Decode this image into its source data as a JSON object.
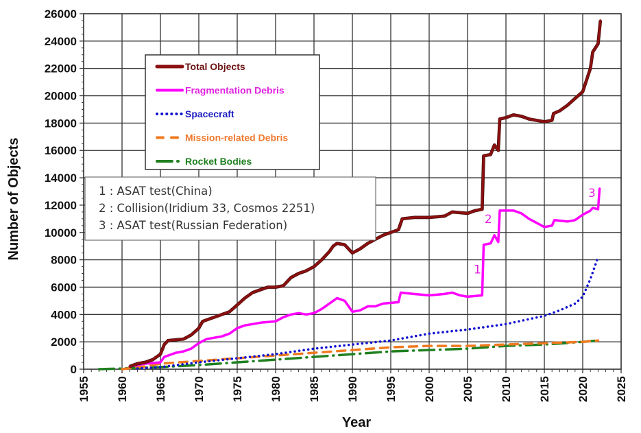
{
  "chart_data": {
    "type": "line",
    "title": "",
    "xlabel": "Year",
    "ylabel": "Number of Objects",
    "xlim": [
      1955,
      2025
    ],
    "ylim": [
      0,
      26000
    ],
    "x_ticks": [
      "1955",
      "1960",
      "1965",
      "1970",
      "1975",
      "1980",
      "1985",
      "1990",
      "1995",
      "2000",
      "2005",
      "2010",
      "2015",
      "2020",
      "2025"
    ],
    "y_ticks": [
      "0",
      "2000",
      "4000",
      "6000",
      "8000",
      "10000",
      "12000",
      "14000",
      "16000",
      "18000",
      "20000",
      "22000",
      "24000",
      "26000"
    ],
    "grid": true,
    "legend_position": "top-left",
    "series": [
      {
        "name": "Total Objects",
        "color": "#8b1010",
        "style": "solid",
        "x": [
          1961,
          1962,
          1963,
          1964,
          1965,
          1965.5,
          1966,
          1968,
          1969,
          1970,
          1970.5,
          1972,
          1973,
          1974,
          1975,
          1976,
          1977,
          1978,
          1979,
          1980,
          1981,
          1982,
          1983,
          1984,
          1985,
          1986,
          1987,
          1987.5,
          1988,
          1989,
          1990,
          1991,
          1992,
          1993,
          1994,
          1995,
          1996,
          1996.5,
          1998,
          2000,
          2002,
          2003,
          2005,
          2006,
          2006.9,
          2007.1,
          2008,
          2008.5,
          2009,
          2009.2,
          2010,
          2011,
          2012,
          2013,
          2014,
          2015,
          2016,
          2016.2,
          2017,
          2018,
          2019,
          2020,
          2021,
          2021.3,
          2022,
          2022.3
        ],
        "y": [
          200,
          400,
          500,
          700,
          1100,
          1800,
          2100,
          2200,
          2500,
          3000,
          3500,
          3800,
          4000,
          4200,
          4700,
          5200,
          5600,
          5800,
          6000,
          6000,
          6100,
          6700,
          7000,
          7200,
          7500,
          8000,
          8600,
          9000,
          9200,
          9100,
          8500,
          8800,
          9200,
          9500,
          9800,
          10000,
          10200,
          11000,
          11100,
          11100,
          11200,
          11500,
          11400,
          11600,
          11700,
          15600,
          15700,
          16400,
          16000,
          18300,
          18400,
          18600,
          18500,
          18300,
          18200,
          18100,
          18200,
          18700,
          18900,
          19300,
          19800,
          20300,
          22000,
          23200,
          23800,
          25500
        ]
      },
      {
        "name": "Fragmentation Debris",
        "color": "#ff00ff",
        "style": "solid",
        "x": [
          1961,
          1963,
          1965,
          1965.5,
          1967,
          1968,
          1969,
          1970,
          1971,
          1972,
          1973,
          1974,
          1975,
          1976,
          1977,
          1978,
          1980,
          1981,
          1982,
          1983,
          1984,
          1985,
          1986,
          1987,
          1988,
          1989,
          1990,
          1991,
          1992,
          1993,
          1994,
          1996,
          1996.3,
          1998,
          2000,
          2002,
          2003,
          2004,
          2005,
          2006.9,
          2007.1,
          2008,
          2008.5,
          2009,
          2009.2,
          2011,
          2012,
          2013,
          2014,
          2015,
          2016,
          2016.3,
          2018,
          2019,
          2020,
          2021,
          2021.3,
          2022,
          2022.2
        ],
        "y": [
          200,
          400,
          500,
          900,
          1200,
          1300,
          1500,
          1900,
          2200,
          2300,
          2400,
          2600,
          3000,
          3200,
          3300,
          3400,
          3500,
          3800,
          4000,
          4100,
          4000,
          4100,
          4400,
          4800,
          5200,
          5000,
          4200,
          4300,
          4600,
          4600,
          4800,
          4900,
          5600,
          5500,
          5400,
          5500,
          5600,
          5400,
          5300,
          5400,
          9100,
          9200,
          9800,
          9300,
          11600,
          11600,
          11400,
          11000,
          10700,
          10400,
          10500,
          10900,
          10800,
          10900,
          11300,
          11600,
          11800,
          11700,
          13200
        ]
      },
      {
        "name": "Spacecraft",
        "color": "#1010d0",
        "style": "dotted",
        "x": [
          1962,
          1965,
          1970,
          1975,
          1980,
          1985,
          1990,
          1995,
          2000,
          2005,
          2010,
          2015,
          2017,
          2019,
          2020,
          2021,
          2022
        ],
        "y": [
          50,
          150,
          500,
          800,
          1100,
          1500,
          1800,
          2100,
          2600,
          2900,
          3300,
          3900,
          4300,
          4800,
          5300,
          6600,
          8200
        ]
      },
      {
        "name": "Mission-related Debris",
        "color": "#f07a20",
        "style": "dashed",
        "x": [
          1960,
          1963,
          1965,
          1970,
          1975,
          1980,
          1985,
          1990,
          1995,
          2000,
          2005,
          2010,
          2015,
          2020,
          2022
        ],
        "y": [
          0,
          200,
          400,
          600,
          800,
          1000,
          1200,
          1400,
          1600,
          1700,
          1700,
          1800,
          1900,
          2000,
          2100
        ]
      },
      {
        "name": "Rocket Bodies",
        "color": "#208020",
        "style": "dashdot",
        "x": [
          1957,
          1960,
          1965,
          1970,
          1975,
          1980,
          1985,
          1990,
          1995,
          2000,
          2005,
          2010,
          2015,
          2020,
          2022
        ],
        "y": [
          0,
          50,
          150,
          300,
          500,
          700,
          900,
          1100,
          1300,
          1400,
          1500,
          1700,
          1800,
          2000,
          2100
        ]
      }
    ],
    "annotations": [
      {
        "label": "1",
        "x": 2006.3,
        "y": 7000,
        "color": "#e020e0"
      },
      {
        "label": "2",
        "x": 2007.7,
        "y": 10700,
        "color": "#e020e0"
      },
      {
        "label": "3",
        "x": 2021.2,
        "y": 12600,
        "color": "#e020e0"
      }
    ],
    "notes": [
      "1 : ASAT test(China)",
      "2 : Collision(Iridium 33,  Cosmos 2251)",
      "3 : ASAT test(Russian Federation)"
    ]
  }
}
